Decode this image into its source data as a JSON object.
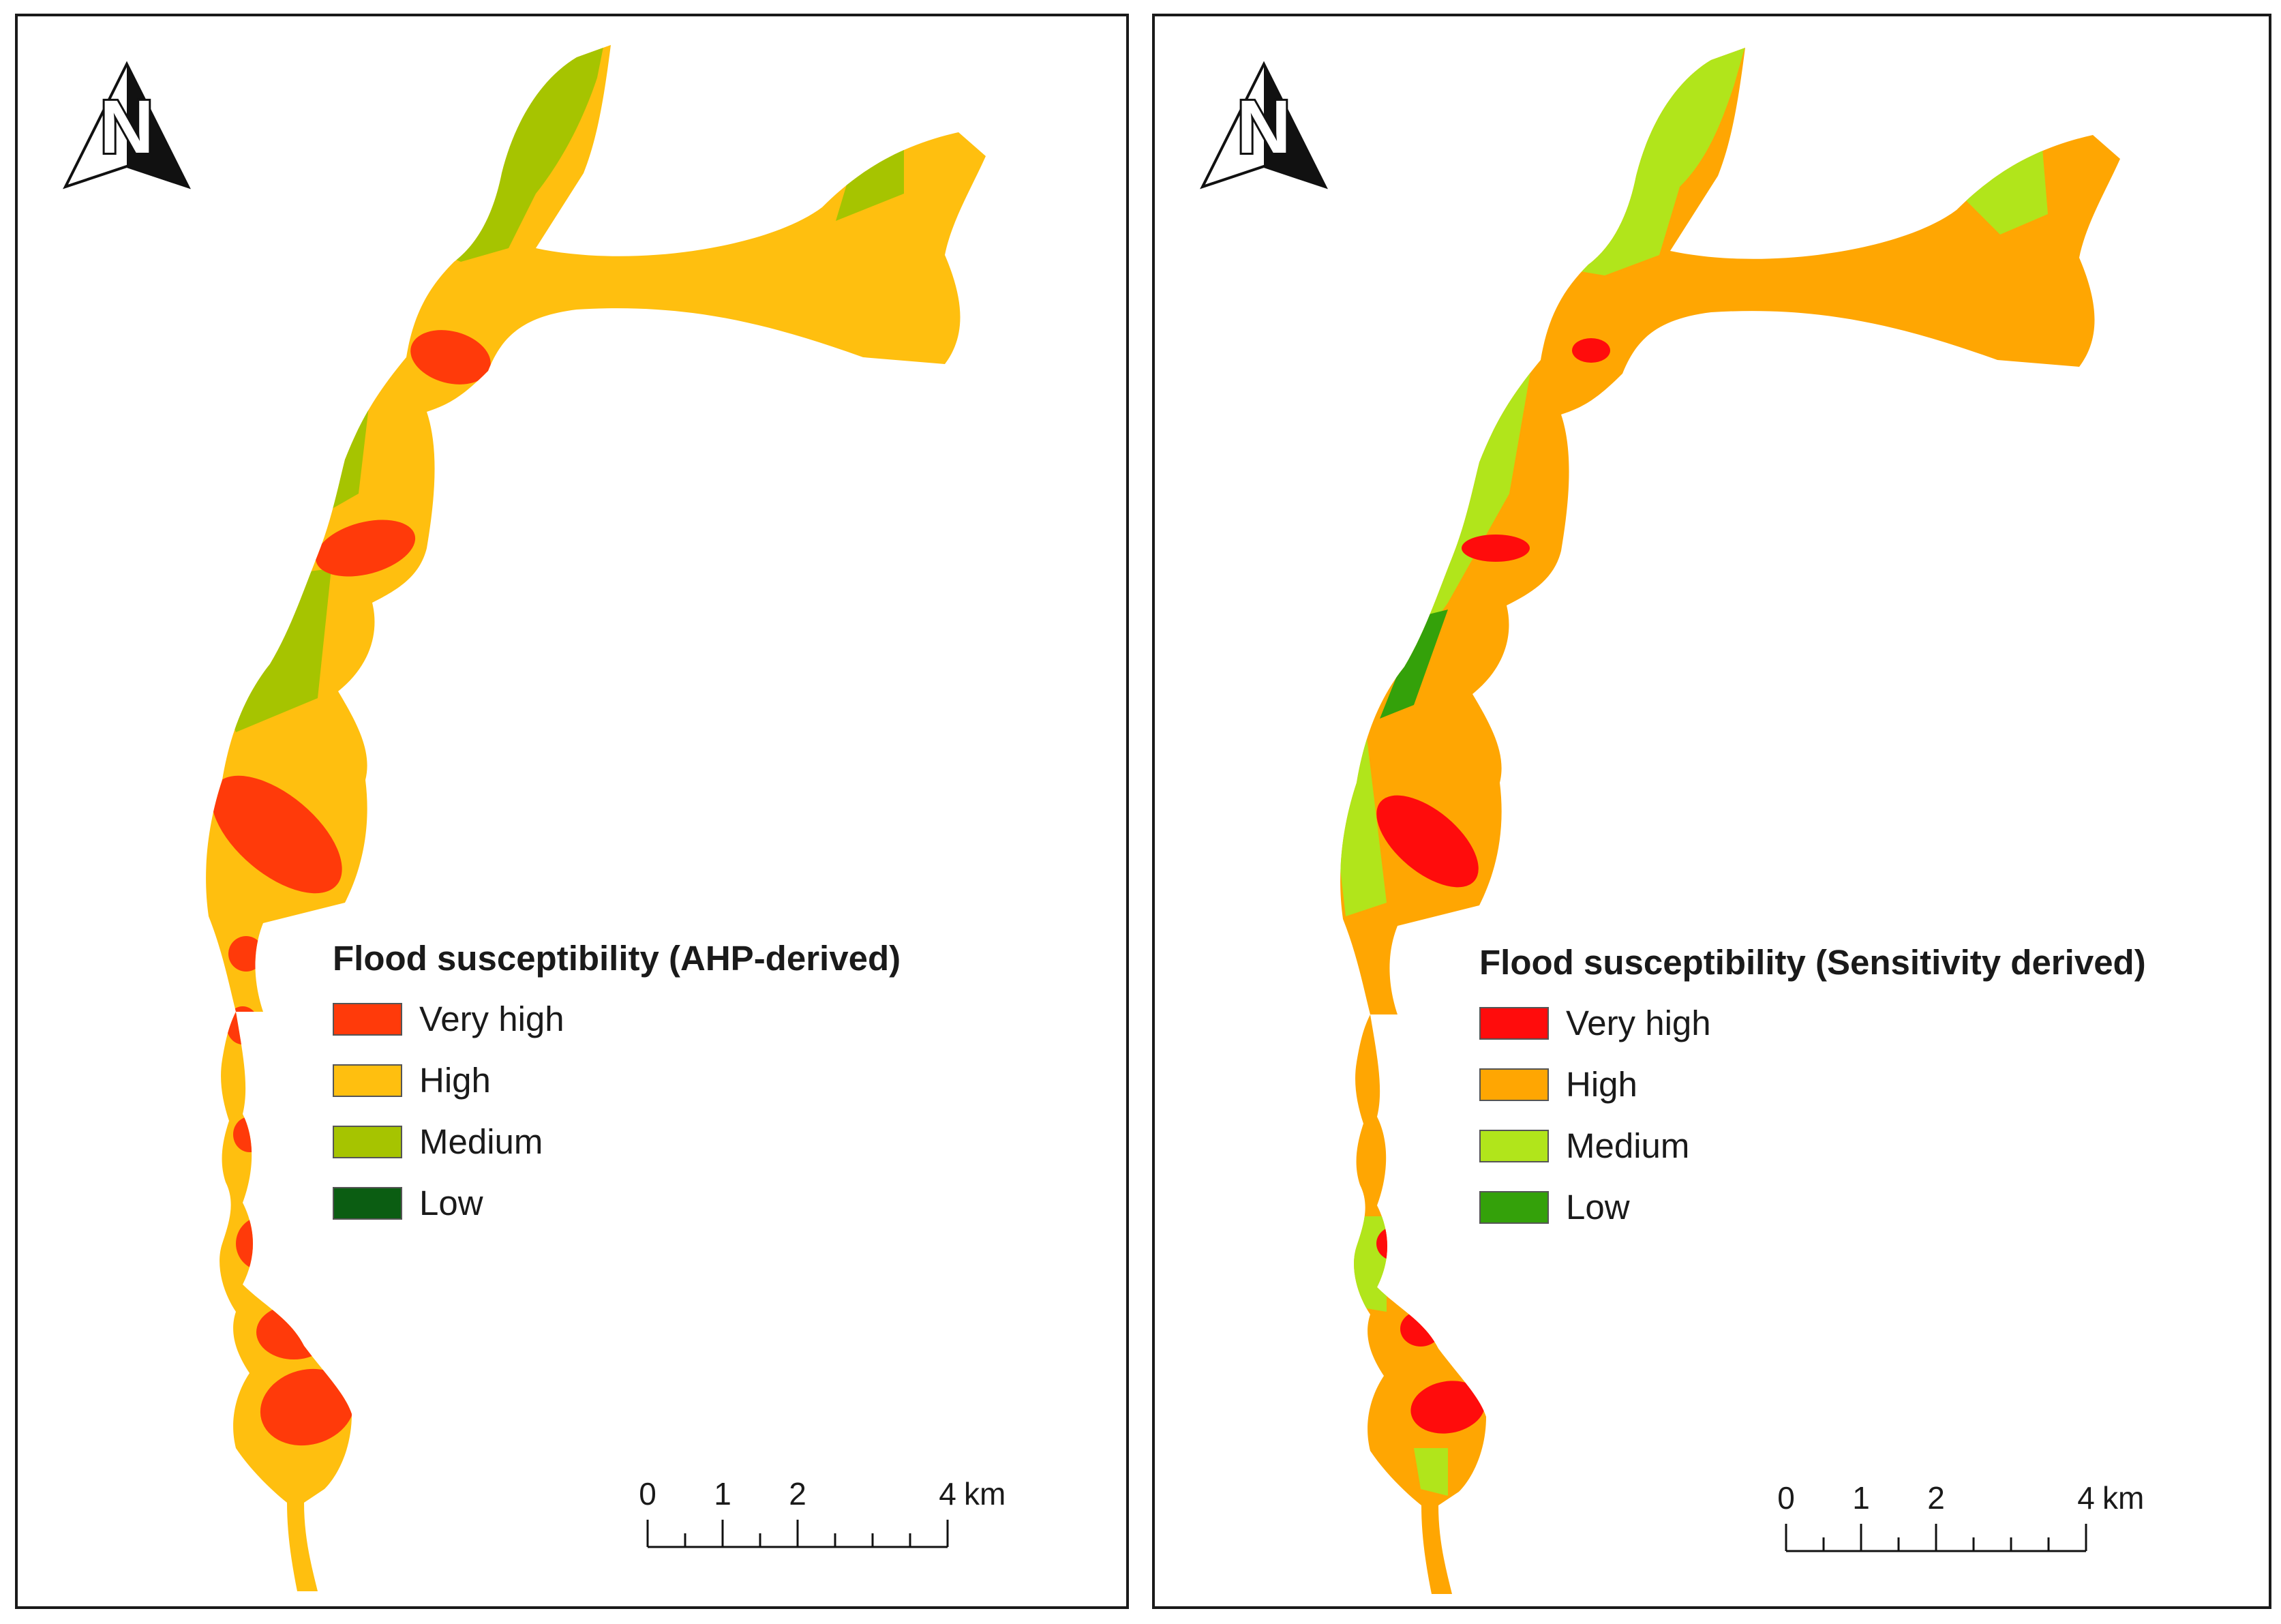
{
  "figure": {
    "panels": [
      {
        "id": "ahp",
        "legend": {
          "title": "Flood susceptibility (AHP-derived)",
          "items": [
            {
              "label": "Very high",
              "color": "#ff3a0a"
            },
            {
              "label": "High",
              "color": "#ffbf0f"
            },
            {
              "label": "Medium",
              "color": "#a6c400"
            },
            {
              "label": "Low",
              "color": "#0b5d12"
            }
          ]
        },
        "scale": {
          "ticks": [
            "0",
            "1",
            "2",
            "4"
          ],
          "unit": "km"
        },
        "north_arrow": {
          "letter": "N",
          "icon": "north-arrow-icon"
        }
      },
      {
        "id": "sensitivity",
        "legend": {
          "title": "Flood susceptibility (Sensitivity derived)",
          "items": [
            {
              "label": "Very high",
              "color": "#ff0c0c"
            },
            {
              "label": "High",
              "color": "#ffa602"
            },
            {
              "label": "Medium",
              "color": "#b1e51b"
            },
            {
              "label": "Low",
              "color": "#34a10a"
            }
          ]
        },
        "scale": {
          "ticks": [
            "0",
            "1",
            "2",
            "4"
          ],
          "unit": "km"
        },
        "north_arrow": {
          "letter": "N",
          "icon": "north-arrow-icon"
        }
      }
    ]
  }
}
